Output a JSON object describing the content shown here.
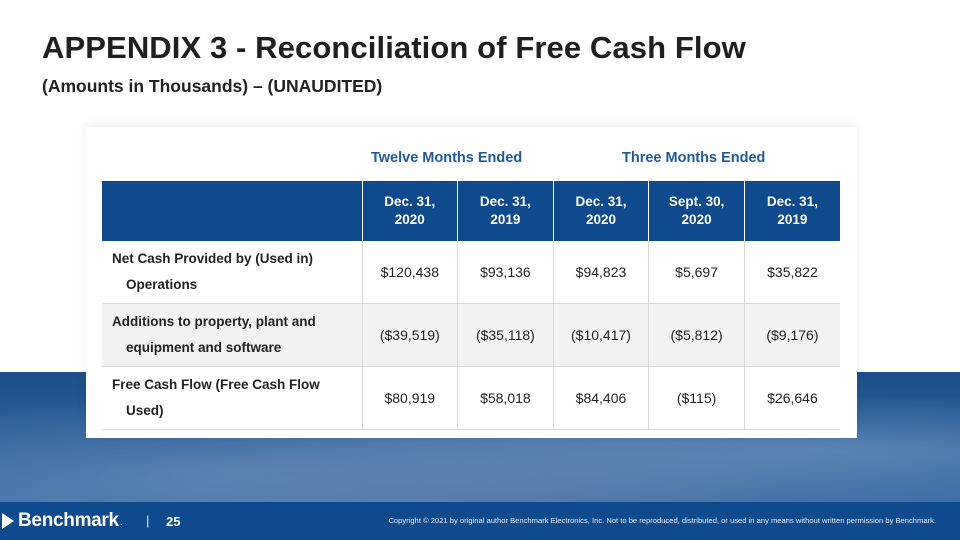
{
  "title": "APPENDIX 3 - Reconciliation of Free Cash Flow",
  "subtitle": "(Amounts in Thousands) – (UNAUDITED)",
  "groups": {
    "twelve_months": "Twelve Months Ended",
    "three_months": "Three Months Ended"
  },
  "columns": [
    {
      "line1": "Dec. 31,",
      "line2": "2020"
    },
    {
      "line1": "Dec. 31,",
      "line2": "2019"
    },
    {
      "line1": "Dec. 31,",
      "line2": "2020"
    },
    {
      "line1": "Sept. 30,",
      "line2": "2020"
    },
    {
      "line1": "Dec. 31,",
      "line2": "2019"
    }
  ],
  "rows": [
    {
      "label_line1": "Net Cash Provided by (Used in)",
      "label_line2": "Operations",
      "values": [
        "$120,438",
        "$93,136",
        "$94,823",
        "$5,697",
        "$35,822"
      ]
    },
    {
      "label_line1": "Additions to property, plant and",
      "label_line2": "equipment and software",
      "values": [
        "($39,519)",
        "($35,118)",
        "($10,417)",
        "($5,812)",
        "($9,176)"
      ]
    },
    {
      "label_line1": "Free Cash Flow (Free Cash Flow",
      "label_line2": "Used)",
      "values": [
        "$80,919",
        "$58,018",
        "$84,406",
        "($115)",
        "$26,646"
      ]
    }
  ],
  "footer": {
    "logo_text": "Benchmark",
    "logo_suffix": ".",
    "separator": "|",
    "page_number": "25",
    "copyright": "Copyright © 2021 by original author Benchmark Electronics, Inc. Not to be reproduced, distributed, or used in any means without written permission by Benchmark."
  },
  "colors": {
    "brand_blue": "#0e4a8c",
    "accent_text": "#1d5a98"
  }
}
